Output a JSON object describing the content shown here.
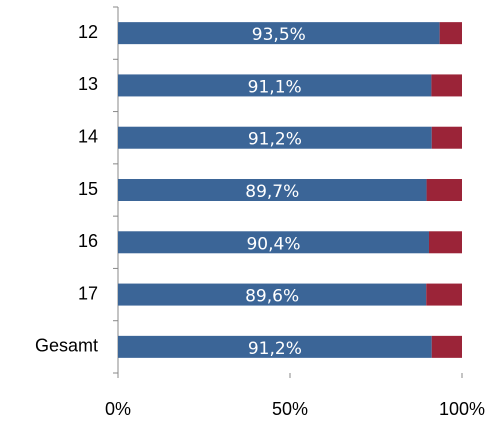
{
  "chart_data": {
    "type": "stacked-bar-horizontal",
    "categories": [
      "12",
      "13",
      "14",
      "15",
      "16",
      "17",
      "Gesamt"
    ],
    "series": [
      {
        "color": "#3b6597",
        "values": [
          93.5,
          91.1,
          91.2,
          89.7,
          90.4,
          89.6,
          91.2
        ],
        "value_labels": [
          "93,5%",
          "91,1%",
          "91,2%",
          "89,7%",
          "90,4%",
          "89,6%",
          "91,2%"
        ]
      },
      {
        "color": "#9b2438",
        "values": [
          6.5,
          8.9,
          8.8,
          10.3,
          9.6,
          10.4,
          8.8
        ]
      }
    ],
    "xlim": [
      0,
      100
    ],
    "xticks": [
      {
        "value": 0,
        "label": "0%"
      },
      {
        "value": 50,
        "label": "50%"
      },
      {
        "value": 100,
        "label": "100%"
      }
    ]
  }
}
